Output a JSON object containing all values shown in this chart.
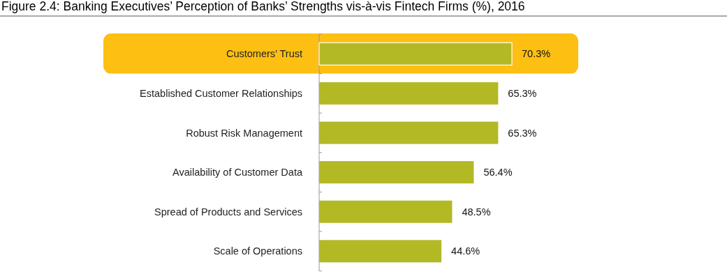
{
  "chart_data": {
    "type": "bar",
    "orientation": "horizontal",
    "title": "Figure 2.4: Banking Executives’ Perception of Banks’ Strengths vis-à-vis Fintech Firms (%), 2016",
    "categories": [
      "Customers’ Trust",
      "Established Customer Relationships",
      "Robust Risk Management",
      "Availability of Customer Data",
      "Spread of Products and Services",
      "Scale of Operations"
    ],
    "values": [
      70.3,
      65.3,
      65.3,
      56.4,
      48.5,
      44.6
    ],
    "value_labels": [
      "70.3%",
      "65.3%",
      "65.3%",
      "56.4%",
      "48.5%",
      "44.6%"
    ],
    "color": "#b3b925",
    "bands": [
      {
        "axis": "y",
        "from": "Customers’ Trust",
        "to": "Customers’ Trust",
        "color": "#fcbf12"
      }
    ]
  }
}
